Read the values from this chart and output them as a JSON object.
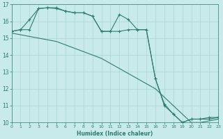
{
  "xlabel": "Humidex (Indice chaleur)",
  "xlim": [
    0,
    23
  ],
  "ylim": [
    10,
    17
  ],
  "yticks": [
    10,
    11,
    12,
    13,
    14,
    15,
    16,
    17
  ],
  "xticks": [
    0,
    1,
    2,
    3,
    4,
    5,
    6,
    7,
    8,
    9,
    10,
    11,
    12,
    13,
    14,
    15,
    16,
    17,
    18,
    19,
    20,
    21,
    22,
    23
  ],
  "bg_color": "#c9eaea",
  "grid_color": "#aad4d4",
  "line_color": "#2e7d6e",
  "line1_x": [
    0,
    1,
    2,
    3,
    4,
    5,
    6,
    7,
    8,
    9,
    10,
    11,
    12,
    13,
    14,
    15,
    16,
    17,
    18,
    19,
    20,
    21,
    22,
    23
  ],
  "line1_y": [
    15.4,
    15.5,
    16.1,
    16.75,
    16.8,
    16.75,
    16.6,
    16.5,
    16.5,
    16.3,
    15.4,
    15.4,
    16.4,
    16.1,
    15.5,
    15.5,
    12.6,
    11.1,
    10.5,
    10.0,
    10.2,
    10.2,
    10.3,
    10.3
  ],
  "line2_x": [
    0,
    1,
    2,
    3,
    4,
    5,
    6,
    7,
    8,
    9,
    10,
    11,
    12,
    13,
    14,
    15,
    16,
    17,
    18,
    19,
    20,
    21,
    22,
    23
  ],
  "line2_y": [
    15.4,
    15.5,
    15.5,
    16.75,
    16.8,
    16.8,
    16.6,
    16.5,
    16.5,
    16.3,
    15.4,
    15.4,
    15.4,
    15.5,
    15.5,
    15.5,
    12.6,
    11.0,
    10.5,
    10.0,
    10.2,
    10.2,
    10.2,
    10.3
  ],
  "line3_x": [
    0,
    1,
    2,
    3,
    4,
    5,
    6,
    7,
    8,
    9,
    10,
    11,
    12,
    13,
    14,
    15,
    16,
    17,
    18,
    19,
    20,
    21,
    22,
    23
  ],
  "line3_y": [
    15.3,
    15.2,
    15.1,
    15.0,
    14.9,
    14.8,
    14.6,
    14.4,
    14.2,
    14.0,
    13.8,
    13.5,
    13.2,
    12.9,
    12.6,
    12.3,
    12.0,
    11.5,
    11.0,
    10.5,
    10.0,
    10.0,
    10.1,
    10.2
  ]
}
